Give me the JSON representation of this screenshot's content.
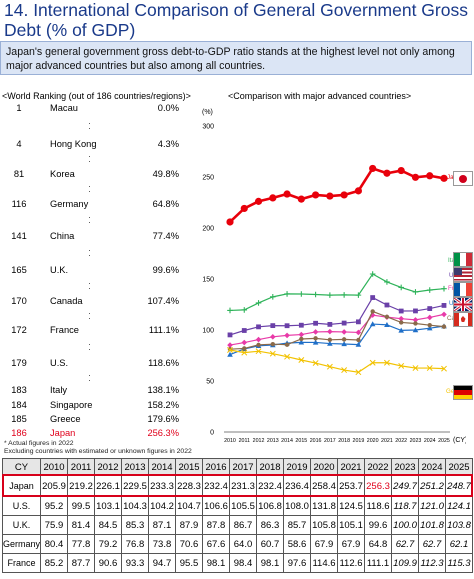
{
  "title": "14. International Comparison of General Government Gross Debt (% of GDP)",
  "intro": "Japan's general government gross debt-to-GDP ratio stands at the highest level not only among major advanced countries but also among all countries.",
  "ranking": {
    "header": "<World Ranking (out of 186 countries/regions)>",
    "rows": [
      {
        "rank": "1",
        "country": "Macau",
        "value": "0.0%"
      },
      {
        "rank": "4",
        "country": "Hong Kong",
        "value": "4.3%"
      },
      {
        "rank": "81",
        "country": "Korea",
        "value": "49.8%"
      },
      {
        "rank": "116",
        "country": "Germany",
        "value": "64.8%"
      },
      {
        "rank": "141",
        "country": "China",
        "value": "77.4%"
      },
      {
        "rank": "165",
        "country": "U.K.",
        "value": "99.6%"
      },
      {
        "rank": "170",
        "country": "Canada",
        "value": "107.4%"
      },
      {
        "rank": "172",
        "country": "France",
        "value": "111.1%"
      },
      {
        "rank": "179",
        "country": "U.S.",
        "value": "118.6%"
      },
      {
        "rank": "183",
        "country": "Italy",
        "value": "138.1%"
      },
      {
        "rank": "184",
        "country": "Singapore",
        "value": "158.2%"
      },
      {
        "rank": "185",
        "country": "Greece",
        "value": "179.6%"
      },
      {
        "rank": "186",
        "country": "Japan",
        "value": "256.3%"
      }
    ],
    "notes": [
      "* Actual figures in 2022",
      "Excluding countries with estimated or unknown figures in 2022"
    ]
  },
  "chart_header": "<Comparison with major advanced countries>",
  "chart_data": {
    "type": "line",
    "ylabel": "(%)",
    "xlabel": "(CY)",
    "ylim": [
      0,
      300
    ],
    "yticks": [
      0,
      50,
      100,
      150,
      200,
      250,
      300
    ],
    "x": [
      2010,
      2011,
      2012,
      2013,
      2014,
      2015,
      2016,
      2017,
      2018,
      2019,
      2020,
      2021,
      2022,
      2023,
      2024,
      2025
    ],
    "series": [
      {
        "name": "Japan",
        "color": "#e8000b",
        "values": [
          205.9,
          219.2,
          226.1,
          229.5,
          233.3,
          228.3,
          232.4,
          231.3,
          232.4,
          236.4,
          258.4,
          253.7,
          256.3,
          249.7,
          251.2,
          248.7
        ]
      },
      {
        "name": "Italy",
        "color": "#2fb35a",
        "values": [
          119.2,
          119.7,
          126.5,
          132.5,
          135.4,
          135.3,
          134.8,
          134.2,
          134.4,
          134.2,
          154.9,
          147.1,
          141.7,
          137.3,
          139.2,
          140.5
        ]
      },
      {
        "name": "U.S.",
        "color": "#6a40a8",
        "values": [
          95.2,
          99.5,
          103.1,
          104.3,
          104.2,
          104.7,
          106.6,
          105.5,
          106.8,
          108.0,
          131.8,
          124.5,
          118.6,
          118.7,
          121.0,
          124.1
        ]
      },
      {
        "name": "France",
        "color": "#e83aa8",
        "values": [
          85.2,
          87.7,
          90.6,
          93.3,
          94.7,
          95.5,
          98.1,
          98.4,
          98.1,
          97.6,
          114.6,
          112.6,
          111.1,
          109.9,
          112.3,
          115.3
        ]
      },
      {
        "name": "U.K.",
        "color": "#1f6fc8",
        "values": [
          75.9,
          81.4,
          84.5,
          85.3,
          87.1,
          87.9,
          87.8,
          86.7,
          86.3,
          85.7,
          105.8,
          105.1,
          99.6,
          100.0,
          101.8,
          103.8
        ]
      },
      {
        "name": "Canada",
        "color": "#8a6a4a",
        "values": [
          81.2,
          81.9,
          85.4,
          86.1,
          85.6,
          91.2,
          91.8,
          90.4,
          90.8,
          90.2,
          118.2,
          112.9,
          107.4,
          106.4,
          104.7,
          103.3
        ]
      },
      {
        "name": "Germany",
        "color": "#f2c200",
        "values": [
          80.4,
          77.8,
          79.2,
          76.8,
          73.8,
          70.6,
          67.6,
          64.0,
          60.7,
          58.6,
          67.9,
          67.9,
          64.8,
          62.7,
          62.7,
          62.1
        ]
      }
    ]
  },
  "table": {
    "header_label": "CY",
    "years": [
      "2010",
      "2011",
      "2012",
      "2013",
      "2014",
      "2015",
      "2016",
      "2017",
      "2018",
      "2019",
      "2020",
      "2021",
      "2022",
      "2023",
      "2024",
      "2025"
    ],
    "rows": [
      {
        "country": "Japan",
        "values": [
          "205.9",
          "219.2",
          "226.1",
          "229.5",
          "233.3",
          "228.3",
          "232.4",
          "231.3",
          "232.4",
          "236.4",
          "258.4",
          "253.7",
          "256.3",
          "249.7",
          "251.2",
          "248.7"
        ]
      },
      {
        "country": "U.S.",
        "values": [
          "95.2",
          "99.5",
          "103.1",
          "104.3",
          "104.2",
          "104.7",
          "106.6",
          "105.5",
          "106.8",
          "108.0",
          "131.8",
          "124.5",
          "118.6",
          "118.7",
          "121.0",
          "124.1"
        ]
      },
      {
        "country": "U.K.",
        "values": [
          "75.9",
          "81.4",
          "84.5",
          "85.3",
          "87.1",
          "87.9",
          "87.8",
          "86.7",
          "86.3",
          "85.7",
          "105.8",
          "105.1",
          "99.6",
          "100.0",
          "101.8",
          "103.8"
        ]
      },
      {
        "country": "Germany",
        "values": [
          "80.4",
          "77.8",
          "79.2",
          "76.8",
          "73.8",
          "70.6",
          "67.6",
          "64.0",
          "60.7",
          "58.6",
          "67.9",
          "67.9",
          "64.8",
          "62.7",
          "62.7",
          "62.1"
        ]
      },
      {
        "country": "France",
        "values": [
          "85.2",
          "87.7",
          "90.6",
          "93.3",
          "94.7",
          "95.5",
          "98.1",
          "98.4",
          "98.1",
          "97.6",
          "114.6",
          "112.6",
          "111.1",
          "109.9",
          "112.3",
          "115.3"
        ]
      }
    ]
  }
}
